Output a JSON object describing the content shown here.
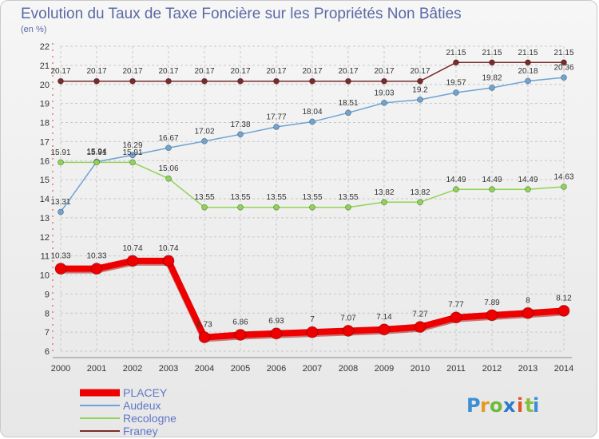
{
  "chart_data": {
    "type": "line",
    "title": "Evolution du Taux de Taxe Foncière sur les Propriétés Non Bâties",
    "ylabel": "(en %)",
    "xlabel": "",
    "ylim": [
      6,
      22
    ],
    "yticks": [
      "6",
      "7",
      "8",
      "9",
      "10",
      "11",
      "12",
      "13",
      "14",
      "15",
      "16",
      "17",
      "18",
      "19",
      "20",
      "21",
      "22"
    ],
    "x": [
      "2000",
      "2001",
      "2002",
      "2003",
      "2004",
      "2005",
      "2006",
      "2007",
      "2008",
      "2009",
      "2010",
      "2011",
      "2012",
      "2013",
      "2014"
    ],
    "grid": true,
    "legend_position": "bottom-left",
    "series": [
      {
        "name": "Franey",
        "color": "#7b2a2a",
        "values": [
          20.17,
          20.17,
          20.17,
          20.17,
          20.17,
          20.17,
          20.17,
          20.17,
          20.17,
          20.17,
          20.17,
          21.15,
          21.15,
          21.15,
          21.15
        ],
        "labels": [
          "20.17",
          "20.17",
          "20.17",
          "20.17",
          "20.17",
          "20.17",
          "20.17",
          "20.17",
          "20.17",
          "20.17",
          "20.17",
          "21.15",
          "21.15",
          "21.15",
          "21.15"
        ]
      },
      {
        "name": "Audeux",
        "color": "#6fa3d4",
        "values": [
          13.31,
          15.94,
          16.29,
          16.67,
          17.02,
          17.38,
          17.77,
          18.04,
          18.51,
          19.03,
          19.2,
          19.57,
          19.82,
          20.18,
          20.36
        ],
        "labels": [
          "13.31",
          "15.94",
          "16.29",
          "16.67",
          "17.02",
          "17.38",
          "17.77",
          "18.04",
          "18.51",
          "19.03",
          "19.2",
          "19.57",
          "19.82",
          "20.18",
          "20.36"
        ]
      },
      {
        "name": "Recologne",
        "color": "#8fd454",
        "values": [
          15.91,
          15.91,
          15.91,
          15.06,
          13.55,
          13.55,
          13.55,
          13.55,
          13.55,
          13.82,
          13.82,
          14.49,
          14.49,
          14.49,
          14.63
        ],
        "labels": [
          "15.91",
          "15.91",
          "15.91",
          "15.06",
          "13.55",
          "13.55",
          "13.55",
          "13.55",
          "13.55",
          "13.82",
          "13.82",
          "14.49",
          "14.49",
          "14.49",
          "14.63"
        ]
      },
      {
        "name": "PLACEY",
        "color": "#ee0000",
        "values": [
          10.33,
          10.33,
          10.74,
          10.74,
          6.73,
          6.86,
          6.93,
          7,
          7.07,
          7.14,
          7.27,
          7.77,
          7.89,
          8,
          8.12
        ],
        "labels": [
          "10.33",
          "10.33",
          "10.74",
          "10.74",
          "6.73",
          "6.86",
          "6.93",
          "7",
          "7.07",
          "7.14",
          "7.27",
          "7.77",
          "7.89",
          "8",
          "8.12"
        ]
      }
    ],
    "legend": [
      "PLACEY",
      "Audeux",
      "Recologne",
      "Franey"
    ]
  },
  "branding": {
    "logo_text": "Proxiti",
    "letters": [
      "P",
      "r",
      "o",
      "x",
      "i",
      "t",
      "i"
    ],
    "letter_colors": [
      "#3c8fd6",
      "#e59a24",
      "#6fb93b",
      "#2b7bc9",
      "#e0552a",
      "#86c13d",
      "#3c8fd6"
    ]
  }
}
